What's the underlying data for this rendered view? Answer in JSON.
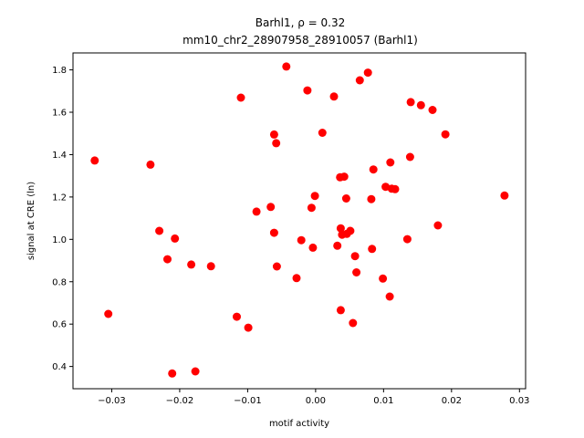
{
  "chart_data": {
    "type": "scatter",
    "title_line1": "Barhl1, ρ = 0.32",
    "title_line2": "mm10_chr2_28907958_28910057 (Barhl1)",
    "xlabel": "motif activity",
    "ylabel": "signal at CRE (ln)",
    "xlim": [
      -0.0357,
      0.0309
    ],
    "ylim": [
      0.295,
      1.88
    ],
    "xticks": [
      -0.03,
      -0.02,
      -0.01,
      0.0,
      0.01,
      0.02,
      0.03
    ],
    "xtick_labels": [
      "−0.03",
      "−0.02",
      "−0.01",
      "0.00",
      "0.01",
      "0.02",
      "0.03"
    ],
    "yticks": [
      0.4,
      0.6,
      0.8,
      1.0,
      1.2,
      1.4,
      1.6,
      1.8
    ],
    "ytick_labels": [
      "0.4",
      "0.6",
      "0.8",
      "1.0",
      "1.2",
      "1.4",
      "1.6",
      "1.8"
    ],
    "marker_color": "#ff0000",
    "grid": false,
    "points": [
      [
        -0.0325,
        1.372
      ],
      [
        -0.0305,
        0.648
      ],
      [
        -0.0243,
        1.353
      ],
      [
        -0.023,
        1.04
      ],
      [
        -0.0218,
        0.906
      ],
      [
        -0.0211,
        0.367
      ],
      [
        -0.0207,
        1.004
      ],
      [
        -0.0183,
        0.881
      ],
      [
        -0.0177,
        0.377
      ],
      [
        -0.0154,
        0.873
      ],
      [
        -0.0116,
        0.635
      ],
      [
        -0.011,
        1.669
      ],
      [
        -0.0099,
        0.583
      ],
      [
        -0.0087,
        1.131
      ],
      [
        -0.0066,
        1.153
      ],
      [
        -0.0061,
        1.495
      ],
      [
        -0.0061,
        1.031
      ],
      [
        -0.0058,
        1.454
      ],
      [
        -0.0057,
        0.872
      ],
      [
        -0.0043,
        1.816
      ],
      [
        -0.0028,
        0.817
      ],
      [
        -0.0021,
        0.996
      ],
      [
        -0.0012,
        1.703
      ],
      [
        -0.0006,
        1.149
      ],
      [
        -0.0004,
        0.961
      ],
      [
        -0.0001,
        1.205
      ],
      [
        0.001,
        1.503
      ],
      [
        0.0027,
        1.674
      ],
      [
        0.0032,
        0.97
      ],
      [
        0.0036,
        1.293
      ],
      [
        0.0037,
        1.052
      ],
      [
        0.0037,
        0.666
      ],
      [
        0.0039,
        1.022
      ],
      [
        0.0042,
        1.296
      ],
      [
        0.0045,
        1.193
      ],
      [
        0.0046,
        1.026
      ],
      [
        0.0051,
        1.04
      ],
      [
        0.0055,
        0.605
      ],
      [
        0.0058,
        0.921
      ],
      [
        0.006,
        0.844
      ],
      [
        0.0065,
        1.751
      ],
      [
        0.0077,
        1.787
      ],
      [
        0.0082,
        1.19
      ],
      [
        0.0083,
        0.955
      ],
      [
        0.0085,
        1.33
      ],
      [
        0.0099,
        0.815
      ],
      [
        0.0103,
        1.248
      ],
      [
        0.0109,
        0.73
      ],
      [
        0.011,
        1.363
      ],
      [
        0.0112,
        1.239
      ],
      [
        0.0117,
        1.237
      ],
      [
        0.0135,
        1.001
      ],
      [
        0.0139,
        1.389
      ],
      [
        0.014,
        1.648
      ],
      [
        0.0155,
        1.633
      ],
      [
        0.0172,
        1.611
      ],
      [
        0.018,
        1.066
      ],
      [
        0.0191,
        1.496
      ],
      [
        0.0278,
        1.207
      ]
    ]
  }
}
